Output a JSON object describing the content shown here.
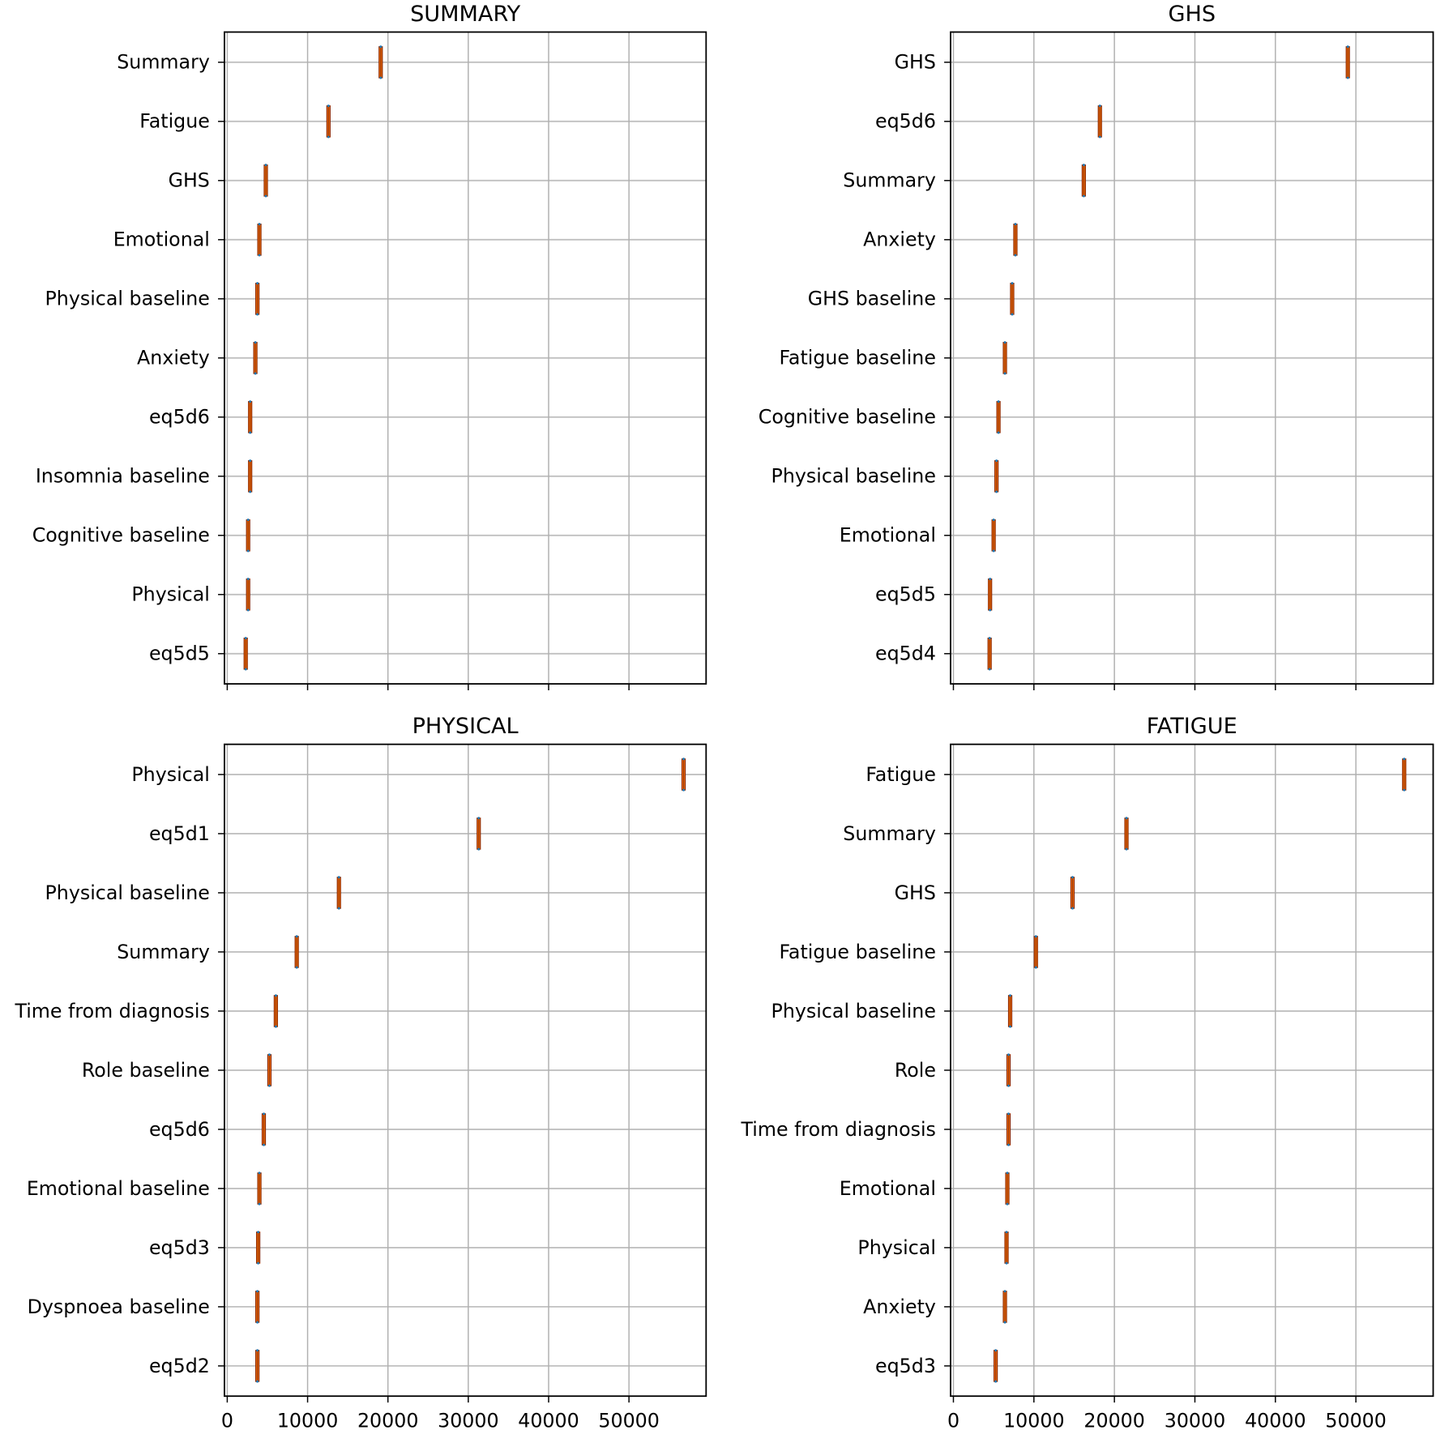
{
  "chart_data": [
    {
      "type": "boxplot-horizontal",
      "title": "SUMMARY",
      "xlim": [
        -350,
        59600
      ],
      "xticks": [
        0,
        10000,
        20000,
        30000,
        40000,
        50000
      ],
      "show_xtick_labels": false,
      "grid": true,
      "categories": [
        "Summary",
        "Fatigue",
        "GHS",
        "Emotional",
        "Physical baseline",
        "Anxiety",
        "eq5d6",
        "Insomnia baseline",
        "Cognitive baseline",
        "Physical",
        "eq5d5"
      ],
      "values": [
        19100,
        12600,
        4800,
        4000,
        3750,
        3500,
        2850,
        2850,
        2600,
        2600,
        2300
      ]
    },
    {
      "type": "boxplot-horizontal",
      "title": "GHS",
      "xlim": [
        -350,
        59600
      ],
      "xticks": [
        0,
        10000,
        20000,
        30000,
        40000,
        50000
      ],
      "show_xtick_labels": false,
      "grid": true,
      "categories": [
        "GHS",
        "eq5d6",
        "Summary",
        "Anxiety",
        "GHS baseline",
        "Fatigue baseline",
        "Cognitive baseline",
        "Physical baseline",
        "Emotional",
        "eq5d5",
        "eq5d4"
      ],
      "values": [
        49000,
        18200,
        16200,
        7700,
        7300,
        6400,
        5600,
        5350,
        5000,
        4550,
        4500
      ]
    },
    {
      "type": "boxplot-horizontal",
      "title": "PHYSICAL",
      "xlim": [
        -350,
        59600
      ],
      "xticks": [
        0,
        10000,
        20000,
        30000,
        40000,
        50000
      ],
      "xtick_labels": [
        "0",
        "10000",
        "20000",
        "30000",
        "40000",
        "50000"
      ],
      "show_xtick_labels": true,
      "grid": true,
      "categories": [
        "Physical",
        "eq5d1",
        "Physical baseline",
        "Summary",
        "Time from diagnosis",
        "Role baseline",
        "eq5d6",
        "Emotional baseline",
        "eq5d3",
        "Dyspnoea baseline",
        "eq5d2"
      ],
      "values": [
        56800,
        31300,
        13900,
        8650,
        6050,
        5250,
        4550,
        4000,
        3850,
        3750,
        3750
      ]
    },
    {
      "type": "boxplot-horizontal",
      "title": "FATIGUE",
      "xlim": [
        -350,
        59600
      ],
      "xticks": [
        0,
        10000,
        20000,
        30000,
        40000,
        50000
      ],
      "xtick_labels": [
        "0",
        "10000",
        "20000",
        "30000",
        "40000",
        "50000"
      ],
      "show_xtick_labels": true,
      "grid": true,
      "categories": [
        "Fatigue",
        "Summary",
        "GHS",
        "Fatigue baseline",
        "Physical baseline",
        "Role",
        "Time from diagnosis",
        "Emotional",
        "Physical",
        "Anxiety",
        "eq5d3"
      ],
      "values": [
        56000,
        21500,
        14800,
        10250,
        7050,
        6850,
        6850,
        6700,
        6600,
        6400,
        5250
      ]
    }
  ],
  "colors": {
    "median": "#ff7f0e",
    "box": "#8b2500",
    "cap": "#1f77b4",
    "grid": "#b0b0b0",
    "axis": "#000000"
  }
}
